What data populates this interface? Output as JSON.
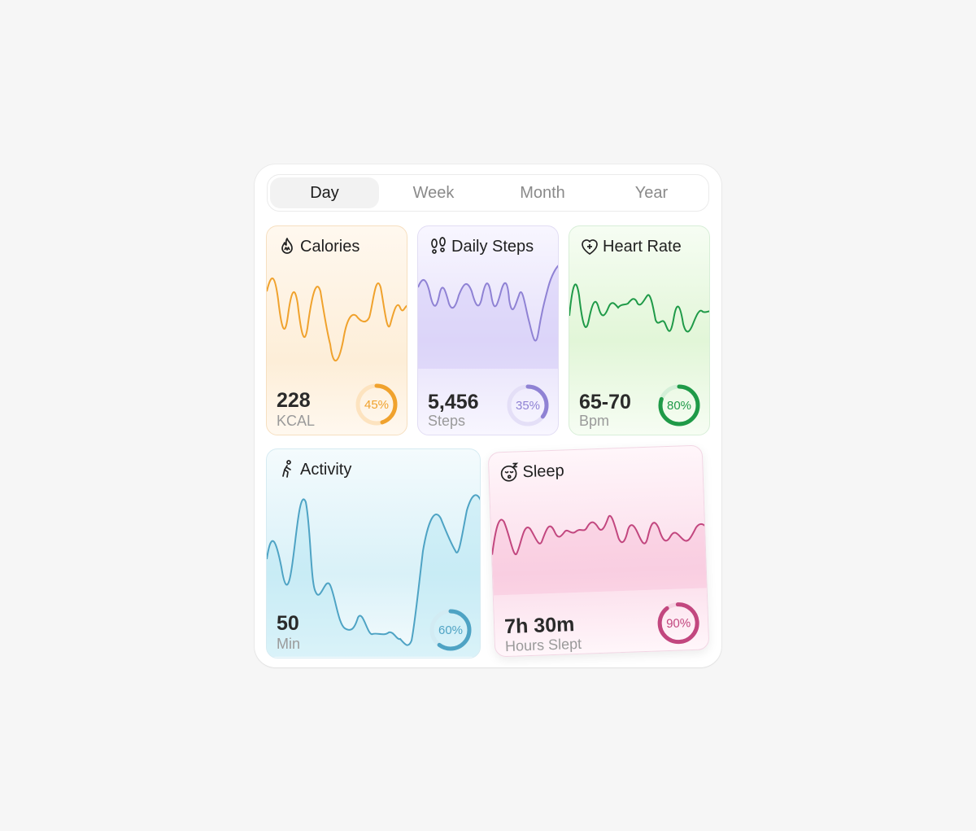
{
  "tabs": [
    "Day",
    "Week",
    "Month",
    "Year"
  ],
  "active_tab": "Day",
  "cards": {
    "calories": {
      "title": "Calories",
      "value": "228",
      "unit": "KCAL",
      "percent_label": "45%",
      "percent": 45,
      "color": "#f0a22d",
      "icon": "flame-icon"
    },
    "steps": {
      "title": "Daily Steps",
      "value": "5,456",
      "unit": "Steps",
      "percent_label": "35%",
      "percent": 35,
      "color": "#8f82d4",
      "icon": "footprints-icon"
    },
    "heart": {
      "title": "Heart Rate",
      "value": "65-70",
      "unit": "Bpm",
      "percent_label": "80%",
      "percent": 80,
      "color": "#1f9a48",
      "icon": "heart-plus-icon"
    },
    "activity": {
      "title": "Activity",
      "value": "50",
      "unit": "Min",
      "percent_label": "60%",
      "percent": 60,
      "color": "#4ea3c4",
      "icon": "walking-person-icon"
    },
    "sleep": {
      "title": "Sleep",
      "value": "7h 30m",
      "unit": "Hours Slept",
      "percent_label": "90%",
      "percent": 90,
      "color": "#c2477f",
      "icon": "sleepy-face-icon"
    }
  }
}
